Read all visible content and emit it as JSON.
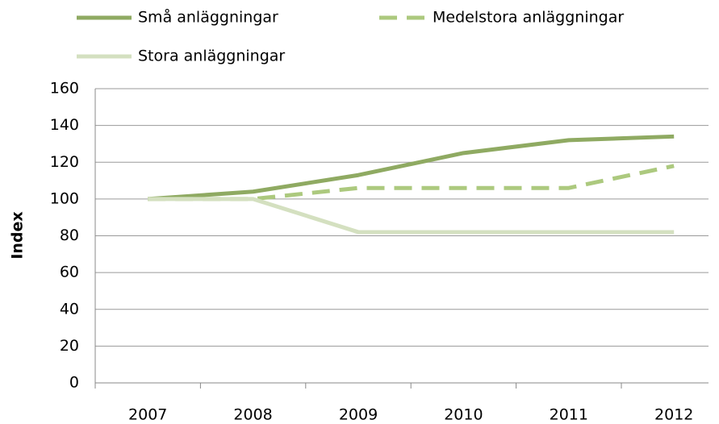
{
  "chart_data": {
    "type": "line",
    "categories": [
      "2007",
      "2008",
      "2009",
      "2010",
      "2011",
      "2012"
    ],
    "series": [
      {
        "name": "Små anläggningar",
        "color": "#8faa62",
        "dash": false,
        "values": [
          100,
          104,
          113,
          125,
          132,
          134
        ]
      },
      {
        "name": "Medelstora anläggningar",
        "color": "#acc97e",
        "dash": true,
        "values": [
          100,
          100,
          106,
          106,
          106,
          118
        ]
      },
      {
        "name": "Stora anläggningar",
        "color": "#d4e0c0",
        "dash": false,
        "values": [
          100,
          100,
          82,
          82,
          82,
          82
        ]
      }
    ],
    "ylabel": "Index",
    "ylim": [
      0,
      160
    ],
    "yticks": [
      0,
      20,
      40,
      60,
      80,
      100,
      120,
      140,
      160
    ],
    "grid": true
  }
}
